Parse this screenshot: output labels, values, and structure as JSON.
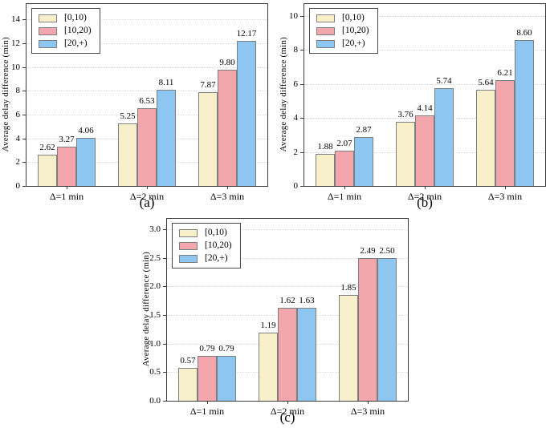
{
  "styles": {
    "background": "#FFFFFF",
    "axis_color": "#3C3C3C",
    "grid_color": "#D9D9D9",
    "bar_edge_color": "#7E7E7E",
    "series_colors": {
      "band_0_10": "#F8EFCB",
      "band_10_20": "#F3A6AB",
      "band_20_plus": "#8DC6F0"
    }
  },
  "chart_data": [
    {
      "id": "a",
      "type": "bar",
      "caption": "(a)",
      "ylabel": "Average delay difference (min)",
      "xlabel": "",
      "categories": [
        "Δ=1 min",
        "Δ=2 min",
        "Δ=3 min"
      ],
      "ytick_labels": [
        "0",
        "2",
        "4",
        "6",
        "8",
        "10",
        "12",
        "14"
      ],
      "ylim": [
        0,
        15.3
      ],
      "grid": true,
      "legend_position": "upper-left",
      "series": [
        {
          "name": "[0,10)",
          "color": "#F8EFCB",
          "values": [
            2.62,
            5.25,
            7.87
          ]
        },
        {
          "name": "[10,20)",
          "color": "#F3A6AB",
          "values": [
            3.27,
            6.53,
            9.8
          ]
        },
        {
          "name": "[20,+)",
          "color": "#8DC6F0",
          "values": [
            4.06,
            8.11,
            12.17
          ]
        }
      ]
    },
    {
      "id": "b",
      "type": "bar",
      "caption": "(b)",
      "ylabel": "Average delay difference (min)",
      "xlabel": "",
      "categories": [
        "Δ=1 min",
        "Δ=2 min",
        "Δ=3 min"
      ],
      "ytick_labels": [
        "0",
        "2",
        "4",
        "6",
        "8",
        "10"
      ],
      "ylim": [
        0,
        10.7
      ],
      "grid": true,
      "legend_position": "upper-left",
      "series": [
        {
          "name": "[0,10)",
          "color": "#F8EFCB",
          "values": [
            1.88,
            3.76,
            5.64
          ]
        },
        {
          "name": "[10,20)",
          "color": "#F3A6AB",
          "values": [
            2.07,
            4.14,
            6.21
          ]
        },
        {
          "name": "[20,+)",
          "color": "#8DC6F0",
          "values": [
            2.87,
            5.74,
            8.6
          ]
        }
      ]
    },
    {
      "id": "c",
      "type": "bar",
      "caption": "(c)",
      "ylabel": "Average delay difference (min)",
      "xlabel": "",
      "categories": [
        "Δ=1 min",
        "Δ=2 min",
        "Δ=3 min"
      ],
      "ytick_labels": [
        "0.0",
        "0.5",
        "1.0",
        "1.5",
        "2.0",
        "2.5",
        "3.0"
      ],
      "ylim": [
        0,
        3.18
      ],
      "grid": true,
      "legend_position": "upper-left",
      "series": [
        {
          "name": "[0,10)",
          "color": "#F8EFCB",
          "values": [
            0.57,
            1.19,
            1.85
          ]
        },
        {
          "name": "[10,20)",
          "color": "#F3A6AB",
          "values": [
            0.79,
            1.62,
            2.49
          ]
        },
        {
          "name": "[20,+)",
          "color": "#8DC6F0",
          "values": [
            0.79,
            1.63,
            2.5
          ]
        }
      ]
    }
  ]
}
